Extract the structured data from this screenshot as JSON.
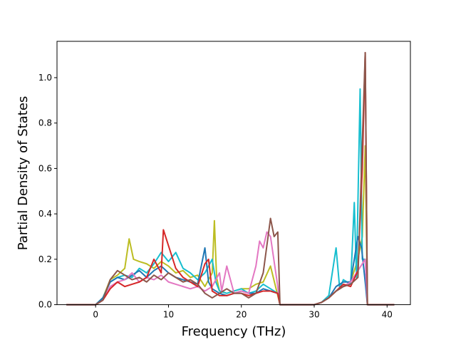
{
  "chart_data": {
    "type": "line",
    "title": "",
    "xlabel": "Frequency (THz)",
    "ylabel": "Partial Density of States",
    "xlim": [
      -5.3,
      43.2
    ],
    "ylim": [
      0.0,
      1.16
    ],
    "xticks": [
      0,
      10,
      20,
      30,
      40
    ],
    "yticks": [
      0.0,
      0.2,
      0.4,
      0.6,
      0.8,
      1.0
    ],
    "xtick_labels": [
      "0",
      "10",
      "20",
      "30",
      "40"
    ],
    "ytick_labels": [
      "0.0",
      "0.2",
      "0.4",
      "0.6",
      "0.8",
      "1.0"
    ],
    "grid": false,
    "legend": "none",
    "series": [
      {
        "color": "#bcbd22",
        "points": [
          [
            -4,
            0
          ],
          [
            0,
            0
          ],
          [
            1,
            0.03
          ],
          [
            2,
            0.11
          ],
          [
            3,
            0.13
          ],
          [
            4,
            0.16
          ],
          [
            4.6,
            0.29
          ],
          [
            5.2,
            0.2
          ],
          [
            6,
            0.19
          ],
          [
            7,
            0.18
          ],
          [
            8,
            0.16
          ],
          [
            9,
            0.19
          ],
          [
            10,
            0.17
          ],
          [
            11,
            0.14
          ],
          [
            12,
            0.15
          ],
          [
            13,
            0.12
          ],
          [
            14,
            0.13
          ],
          [
            15,
            0.08
          ],
          [
            16,
            0.14
          ],
          [
            16.3,
            0.37
          ],
          [
            16.6,
            0.12
          ],
          [
            17,
            0.06
          ],
          [
            18,
            0.05
          ],
          [
            19,
            0.06
          ],
          [
            20,
            0.07
          ],
          [
            21,
            0.07
          ],
          [
            22,
            0.09
          ],
          [
            23,
            0.1
          ],
          [
            24,
            0.17
          ],
          [
            25,
            0.04
          ],
          [
            25.3,
            0
          ],
          [
            30,
            0
          ],
          [
            31,
            0.01
          ],
          [
            32,
            0.03
          ],
          [
            33,
            0.06
          ],
          [
            34,
            0.08
          ],
          [
            35,
            0.1
          ],
          [
            36,
            0.2
          ],
          [
            36.6,
            0.3
          ],
          [
            37,
            0.7
          ],
          [
            37.3,
            0
          ],
          [
            41,
            0
          ]
        ]
      },
      {
        "color": "#17becf",
        "points": [
          [
            -4,
            0
          ],
          [
            0,
            0
          ],
          [
            1,
            0.03
          ],
          [
            2,
            0.1
          ],
          [
            3,
            0.12
          ],
          [
            4,
            0.13
          ],
          [
            5,
            0.12
          ],
          [
            6,
            0.16
          ],
          [
            7,
            0.14
          ],
          [
            8,
            0.18
          ],
          [
            9,
            0.23
          ],
          [
            10,
            0.19
          ],
          [
            11,
            0.23
          ],
          [
            12,
            0.16
          ],
          [
            13,
            0.14
          ],
          [
            14,
            0.11
          ],
          [
            15,
            0.14
          ],
          [
            16,
            0.2
          ],
          [
            16.5,
            0.1
          ],
          [
            17,
            0.06
          ],
          [
            18,
            0.05
          ],
          [
            19,
            0.06
          ],
          [
            20,
            0.07
          ],
          [
            21,
            0.05
          ],
          [
            22,
            0.06
          ],
          [
            23,
            0.09
          ],
          [
            24,
            0.07
          ],
          [
            25,
            0.05
          ],
          [
            25.3,
            0
          ],
          [
            30,
            0
          ],
          [
            31,
            0.01
          ],
          [
            32,
            0.04
          ],
          [
            33,
            0.25
          ],
          [
            33.5,
            0.07
          ],
          [
            34,
            0.11
          ],
          [
            35,
            0.09
          ],
          [
            35.5,
            0.45
          ],
          [
            35.8,
            0.12
          ],
          [
            36.3,
            0.95
          ],
          [
            36.6,
            0.2
          ],
          [
            37,
            0.2
          ],
          [
            37.3,
            0
          ],
          [
            41,
            0
          ]
        ]
      },
      {
        "color": "#1f77b4",
        "points": [
          [
            -4,
            0
          ],
          [
            0,
            0
          ],
          [
            1,
            0.03
          ],
          [
            2,
            0.1
          ],
          [
            3,
            0.12
          ],
          [
            4,
            0.11
          ],
          [
            5,
            0.13
          ],
          [
            6,
            0.15
          ],
          [
            7,
            0.12
          ],
          [
            8,
            0.15
          ],
          [
            9,
            0.17
          ],
          [
            10,
            0.14
          ],
          [
            11,
            0.12
          ],
          [
            12,
            0.11
          ],
          [
            13,
            0.1
          ],
          [
            14,
            0.09
          ],
          [
            15,
            0.25
          ],
          [
            15.5,
            0.1
          ],
          [
            16,
            0.07
          ],
          [
            17,
            0.05
          ],
          [
            18,
            0.04
          ],
          [
            19,
            0.05
          ],
          [
            20,
            0.06
          ],
          [
            21,
            0.05
          ],
          [
            22,
            0.05
          ],
          [
            23,
            0.07
          ],
          [
            24,
            0.06
          ],
          [
            25,
            0.05
          ],
          [
            25.3,
            0
          ],
          [
            30,
            0
          ],
          [
            31,
            0.01
          ],
          [
            32,
            0.03
          ],
          [
            33,
            0.08
          ],
          [
            34,
            0.1
          ],
          [
            35,
            0.1
          ],
          [
            36,
            0.3
          ],
          [
            36.5,
            0.25
          ],
          [
            37,
            0.1
          ],
          [
            37.3,
            0
          ],
          [
            41,
            0
          ]
        ]
      },
      {
        "color": "#e377c2",
        "points": [
          [
            -4,
            0
          ],
          [
            0,
            0
          ],
          [
            1,
            0.02
          ],
          [
            2,
            0.08
          ],
          [
            3,
            0.1
          ],
          [
            4,
            0.11
          ],
          [
            5,
            0.14
          ],
          [
            6,
            0.1
          ],
          [
            7,
            0.12
          ],
          [
            8,
            0.11
          ],
          [
            9,
            0.13
          ],
          [
            10,
            0.1
          ],
          [
            11,
            0.09
          ],
          [
            12,
            0.08
          ],
          [
            13,
            0.07
          ],
          [
            14,
            0.08
          ],
          [
            15,
            0.06
          ],
          [
            16,
            0.08
          ],
          [
            17,
            0.14
          ],
          [
            17.3,
            0.06
          ],
          [
            18,
            0.17
          ],
          [
            19,
            0.05
          ],
          [
            20,
            0.06
          ],
          [
            21,
            0.05
          ],
          [
            22,
            0.17
          ],
          [
            22.5,
            0.28
          ],
          [
            23,
            0.25
          ],
          [
            23.5,
            0.32
          ],
          [
            24,
            0.3
          ],
          [
            25,
            0.08
          ],
          [
            25.3,
            0
          ],
          [
            30,
            0
          ],
          [
            31,
            0.01
          ],
          [
            32,
            0.03
          ],
          [
            33,
            0.06
          ],
          [
            34,
            0.08
          ],
          [
            35,
            0.1
          ],
          [
            36,
            0.15
          ],
          [
            37,
            0.2
          ],
          [
            37.3,
            0
          ],
          [
            41,
            0
          ]
        ]
      },
      {
        "color": "#d62728",
        "points": [
          [
            -4,
            0
          ],
          [
            0,
            0
          ],
          [
            1,
            0.02
          ],
          [
            2,
            0.07
          ],
          [
            3,
            0.1
          ],
          [
            4,
            0.08
          ],
          [
            5,
            0.09
          ],
          [
            6,
            0.1
          ],
          [
            7,
            0.12
          ],
          [
            8,
            0.2
          ],
          [
            9,
            0.14
          ],
          [
            9.3,
            0.33
          ],
          [
            10,
            0.26
          ],
          [
            11,
            0.16
          ],
          [
            12,
            0.12
          ],
          [
            13,
            0.1
          ],
          [
            14,
            0.08
          ],
          [
            15,
            0.18
          ],
          [
            15.5,
            0.2
          ],
          [
            16,
            0.06
          ],
          [
            17,
            0.04
          ],
          [
            18,
            0.04
          ],
          [
            19,
            0.05
          ],
          [
            20,
            0.05
          ],
          [
            21,
            0.04
          ],
          [
            22,
            0.05
          ],
          [
            23,
            0.06
          ],
          [
            24,
            0.06
          ],
          [
            25,
            0.05
          ],
          [
            25.3,
            0
          ],
          [
            30,
            0
          ],
          [
            31,
            0.01
          ],
          [
            32,
            0.03
          ],
          [
            33,
            0.06
          ],
          [
            34,
            0.09
          ],
          [
            35,
            0.08
          ],
          [
            36,
            0.15
          ],
          [
            36.6,
            0.6
          ],
          [
            37,
            1.11
          ],
          [
            37.3,
            0
          ],
          [
            41,
            0
          ]
        ]
      },
      {
        "color": "#8c564b",
        "points": [
          [
            -4,
            0
          ],
          [
            0,
            0
          ],
          [
            1,
            0.02
          ],
          [
            2,
            0.11
          ],
          [
            3,
            0.15
          ],
          [
            4,
            0.13
          ],
          [
            5,
            0.11
          ],
          [
            6,
            0.12
          ],
          [
            7,
            0.1
          ],
          [
            8,
            0.13
          ],
          [
            9,
            0.11
          ],
          [
            10,
            0.14
          ],
          [
            11,
            0.12
          ],
          [
            12,
            0.1
          ],
          [
            13,
            0.11
          ],
          [
            14,
            0.09
          ],
          [
            15,
            0.05
          ],
          [
            16,
            0.03
          ],
          [
            17,
            0.05
          ],
          [
            18,
            0.07
          ],
          [
            19,
            0.05
          ],
          [
            20,
            0.05
          ],
          [
            21,
            0.03
          ],
          [
            22,
            0.05
          ],
          [
            23,
            0.14
          ],
          [
            24,
            0.38
          ],
          [
            24.5,
            0.3
          ],
          [
            25,
            0.32
          ],
          [
            25.3,
            0
          ],
          [
            30,
            0
          ],
          [
            31,
            0.01
          ],
          [
            32,
            0.03
          ],
          [
            33,
            0.06
          ],
          [
            34,
            0.08
          ],
          [
            35,
            0.09
          ],
          [
            36,
            0.12
          ],
          [
            37,
            1.11
          ],
          [
            37.3,
            0
          ],
          [
            41,
            0
          ]
        ]
      }
    ]
  }
}
